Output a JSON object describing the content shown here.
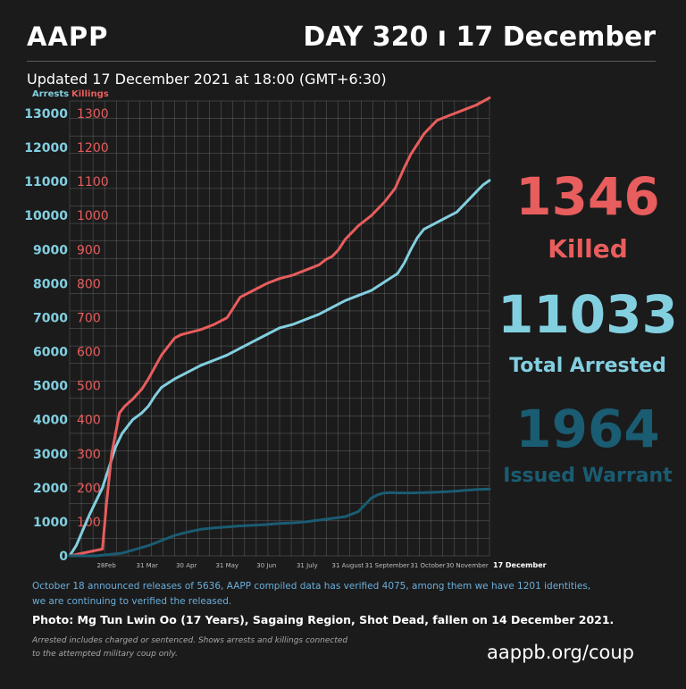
{
  "header": {
    "org": "AAPP",
    "day": "DAY 320 ı 17 December",
    "updated": "Updated 17 December 2021 at 18:00 (GMT+6:30)"
  },
  "axis_titles": {
    "arrests": "Arrests",
    "killings": "Killings"
  },
  "stats": {
    "killed_value": "1346",
    "killed_label": "Killed",
    "arrested_value": "11033",
    "arrested_label": "Total Arrested",
    "warrant_value": "1964",
    "warrant_label": "Issued Warrant"
  },
  "notes": {
    "line1": "October 18 announced releases of 5636, AAPP compiled data has verified 4075, among them we have 1201 identities,",
    "line2": "we are continuing to verified the released.",
    "photo": "Photo: Mg Tun Lwin Oo (17 Years), Sagaing Region, Shot Dead, fallen on 14 December 2021.",
    "foot1": "Arrested includes charged or sentenced. Shows arrests and killings connected",
    "foot2": "to the attempted military coup only.",
    "url": "aappb.org/coup"
  },
  "colors": {
    "background": "#1b1b1b",
    "arrests": "#82cfe0",
    "killings": "#e85d5d",
    "warrants": "#1a5c72",
    "grid": "#9a9a9a"
  },
  "chart_data": {
    "type": "line",
    "x_tick_labels": [
      "28Feb",
      "31 Mar",
      "30 Apr",
      "31 May",
      "30 Jun",
      "31 July",
      "31 August",
      "31 September",
      "31 October",
      "30 November",
      "17 December"
    ],
    "x_tick_days": [
      28,
      59,
      89,
      120,
      150,
      181,
      212,
      242,
      273,
      303,
      320
    ],
    "y_left_ticks": [
      0,
      1000,
      2000,
      3000,
      4000,
      5000,
      6000,
      7000,
      8000,
      9000,
      10000,
      11000,
      12000,
      13000
    ],
    "y_right_ticks": [
      0,
      100,
      200,
      300,
      400,
      500,
      600,
      700,
      800,
      900,
      1000,
      1100,
      1200,
      1300
    ],
    "ylim_left": [
      0,
      13000
    ],
    "ylim_right": [
      0,
      1300
    ],
    "series": [
      {
        "name": "Arrests",
        "axis": "left",
        "color": "#82cfe0",
        "x": [
          0,
          5,
          15,
          25,
          30,
          35,
          40,
          48,
          55,
          60,
          65,
          70,
          80,
          90,
          100,
          110,
          120,
          130,
          140,
          150,
          160,
          170,
          180,
          190,
          200,
          210,
          220,
          230,
          240,
          250,
          255,
          260,
          265,
          270,
          275,
          280,
          285,
          290,
          295,
          300,
          305,
          310,
          315,
          320
        ],
        "y": [
          0,
          300,
          1200,
          2000,
          2600,
          3200,
          3600,
          4000,
          4200,
          4400,
          4700,
          4950,
          5200,
          5400,
          5600,
          5750,
          5900,
          6100,
          6300,
          6500,
          6700,
          6800,
          6950,
          7100,
          7300,
          7500,
          7650,
          7800,
          8050,
          8300,
          8600,
          9000,
          9350,
          9600,
          9700,
          9800,
          9900,
          10000,
          10100,
          10300,
          10500,
          10700,
          10900,
          11033
        ]
      },
      {
        "name": "Killings",
        "axis": "right",
        "color": "#e85d5d",
        "x": [
          0,
          25,
          28,
          32,
          38,
          42,
          48,
          55,
          60,
          70,
          80,
          85,
          90,
          100,
          110,
          120,
          125,
          130,
          140,
          150,
          160,
          170,
          180,
          190,
          195,
          200,
          205,
          210,
          220,
          230,
          240,
          248,
          255,
          260,
          265,
          270,
          275,
          280,
          290,
          300,
          310,
          320
        ],
        "y": [
          0,
          20,
          150,
          300,
          420,
          440,
          460,
          490,
          520,
          590,
          640,
          650,
          655,
          665,
          680,
          700,
          730,
          760,
          780,
          800,
          815,
          825,
          840,
          855,
          870,
          880,
          900,
          930,
          970,
          1000,
          1040,
          1080,
          1140,
          1180,
          1210,
          1240,
          1260,
          1280,
          1295,
          1310,
          1325,
          1346
        ]
      },
      {
        "name": "Issued Warrant",
        "axis": "left",
        "color": "#1a5c72",
        "x": [
          0,
          20,
          40,
          60,
          70,
          80,
          90,
          100,
          110,
          120,
          130,
          140,
          150,
          160,
          170,
          180,
          190,
          200,
          210,
          220,
          225,
          230,
          235,
          240,
          245,
          250,
          260,
          270,
          280,
          290,
          300,
          310,
          320
        ],
        "y": [
          0,
          0,
          80,
          300,
          450,
          600,
          700,
          780,
          820,
          850,
          880,
          900,
          920,
          950,
          970,
          1000,
          1050,
          1100,
          1150,
          1300,
          1500,
          1700,
          1800,
          1850,
          1860,
          1850,
          1850,
          1860,
          1870,
          1890,
          1920,
          1950,
          1964
        ]
      }
    ]
  }
}
